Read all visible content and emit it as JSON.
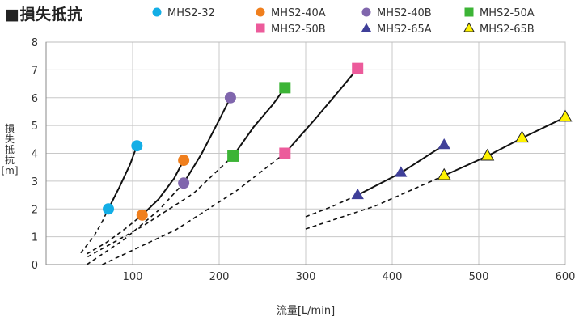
{
  "chart_data": {
    "type": "line",
    "title": "■損失抵抗",
    "xlabel": "流量[L/min]",
    "ylabel": "損失抵抗[m]",
    "xlim": [
      0,
      600
    ],
    "ylim": [
      0,
      8
    ],
    "x_ticks": [
      "100",
      "200",
      "300",
      "400",
      "500",
      "600"
    ],
    "y_ticks": [
      "0",
      "1",
      "2",
      "3",
      "4",
      "5",
      "6",
      "7",
      "8"
    ],
    "grid": true,
    "legend_position": "top",
    "series": [
      {
        "name": "MHS2-32",
        "color": "#13aee6",
        "marker": "circle",
        "points": [
          [
            72,
            2.0
          ],
          [
            105,
            4.27
          ]
        ],
        "solid": [
          [
            72,
            2.0
          ],
          [
            85,
            2.8
          ],
          [
            97,
            3.6
          ],
          [
            105,
            4.27
          ]
        ],
        "dashed": [
          [
            40,
            0.42
          ],
          [
            55,
            1.0
          ],
          [
            65,
            1.55
          ],
          [
            72,
            2.0
          ]
        ]
      },
      {
        "name": "MHS2-40A",
        "color": "#f07f1d",
        "marker": "circle",
        "points": [
          [
            111,
            1.78
          ],
          [
            159,
            3.75
          ]
        ],
        "solid": [
          [
            111,
            1.78
          ],
          [
            130,
            2.35
          ],
          [
            148,
            3.1
          ],
          [
            159,
            3.75
          ]
        ],
        "dashed": [
          [
            47,
            0.38
          ],
          [
            70,
            0.8
          ],
          [
            92,
            1.3
          ],
          [
            111,
            1.78
          ]
        ]
      },
      {
        "name": "MHS2-40B",
        "color": "#8066ad",
        "marker": "circle",
        "points": [
          [
            159,
            2.93
          ],
          [
            213,
            6.0
          ]
        ],
        "solid": [
          [
            159,
            2.93
          ],
          [
            180,
            4.0
          ],
          [
            200,
            5.2
          ],
          [
            213,
            6.0
          ]
        ],
        "dashed": [
          [
            47,
            0.0
          ],
          [
            90,
            0.9
          ],
          [
            130,
            1.95
          ],
          [
            159,
            2.93
          ]
        ]
      },
      {
        "name": "MHS2-50A",
        "color": "#3cb436",
        "marker": "square",
        "points": [
          [
            216,
            3.9
          ],
          [
            276,
            6.36
          ]
        ],
        "solid": [
          [
            216,
            3.9
          ],
          [
            240,
            4.95
          ],
          [
            262,
            5.75
          ],
          [
            276,
            6.36
          ]
        ],
        "dashed": [
          [
            48,
            0.28
          ],
          [
            110,
            1.35
          ],
          [
            170,
            2.55
          ],
          [
            216,
            3.9
          ]
        ]
      },
      {
        "name": "MHS2-50B",
        "color": "#ec5b9b",
        "marker": "square",
        "points": [
          [
            276,
            4.0
          ],
          [
            360,
            7.05
          ]
        ],
        "solid": [
          [
            276,
            4.0
          ],
          [
            310,
            5.2
          ],
          [
            340,
            6.3
          ],
          [
            360,
            7.05
          ]
        ],
        "dashed": [
          [
            65,
            0.0
          ],
          [
            150,
            1.25
          ],
          [
            220,
            2.65
          ],
          [
            276,
            4.0
          ]
        ]
      },
      {
        "name": "MHS2-65A",
        "color": "#3f3f99",
        "marker": "triangle",
        "points": [
          [
            360,
            2.5
          ],
          [
            410,
            3.3
          ],
          [
            460,
            4.3
          ]
        ],
        "solid": [
          [
            360,
            2.5
          ],
          [
            410,
            3.3
          ],
          [
            460,
            4.3
          ]
        ],
        "dashed": [
          [
            300,
            1.72
          ],
          [
            330,
            2.08
          ],
          [
            360,
            2.5
          ]
        ]
      },
      {
        "name": "MHS2-65B",
        "color": "#fef200",
        "marker": "triangle",
        "points": [
          [
            460,
            3.2
          ],
          [
            510,
            3.9
          ],
          [
            550,
            4.55
          ],
          [
            600,
            5.3
          ]
        ],
        "solid": [
          [
            460,
            3.2
          ],
          [
            510,
            3.9
          ],
          [
            550,
            4.55
          ],
          [
            600,
            5.3
          ]
        ],
        "dashed": [
          [
            300,
            1.28
          ],
          [
            380,
            2.1
          ],
          [
            460,
            3.2
          ]
        ]
      }
    ]
  }
}
